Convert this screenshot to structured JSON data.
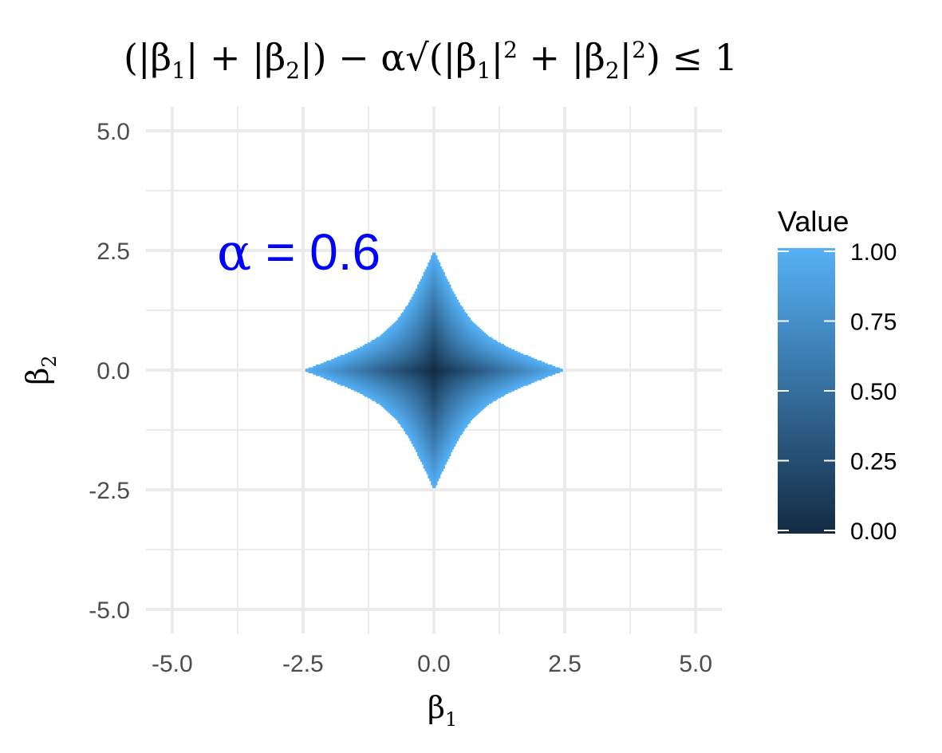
{
  "chart_data": {
    "type": "heatmap",
    "title": "(|β1| + |β2|) − α√(|β1|² + |β2|²) ≤ 1",
    "xlabel": "β1",
    "ylabel": "β2",
    "xlim": [
      -5.5,
      5.5
    ],
    "ylim": [
      -5.5,
      5.5
    ],
    "x_ticks": [
      -5.0,
      -2.5,
      0.0,
      2.5,
      5.0
    ],
    "y_ticks": [
      -5.0,
      -2.5,
      0.0,
      2.5,
      5.0
    ],
    "x_tick_labels": [
      "-5.0",
      "-2.5",
      "0.0",
      "2.5",
      "5.0"
    ],
    "y_tick_labels": [
      "-5.0",
      "-2.5",
      "0.0",
      "2.5",
      "5.0"
    ],
    "grid": true,
    "alpha": 0.6,
    "annotation": {
      "greek": "α",
      "text": " = 0.6",
      "color": "#0000ff"
    },
    "region": "|β1| + |β2| − α√(β1² + β2²) ≤ 1",
    "fill_value": "|β1| + |β2| − α√(β1² + β2²)",
    "legend": {
      "title": "Value",
      "position": "right",
      "ticks": [
        1.0,
        0.75,
        0.5,
        0.25,
        0.0
      ],
      "labels": [
        "1.00",
        "0.75",
        "0.50",
        "0.25",
        "0.00"
      ],
      "color_low": "#132b43",
      "color_high": "#56b1f7"
    }
  }
}
